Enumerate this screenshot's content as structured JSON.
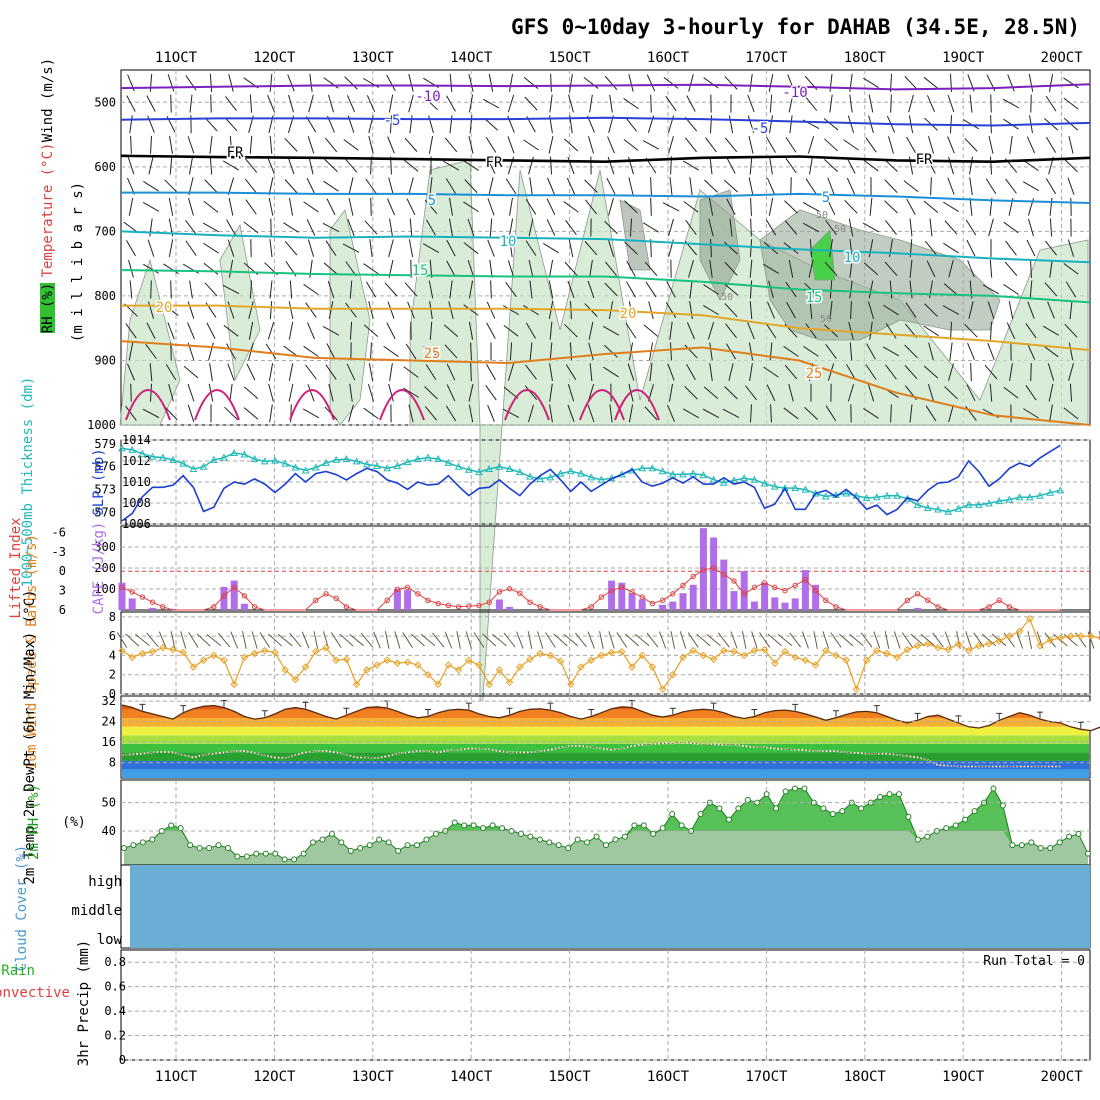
{
  "chart_data": {
    "type": "meteogram",
    "title": "GFS 0~10day 3-hourly for DAHAB (34.5E, 28.5N)",
    "x_ticks": [
      "11OCT",
      "12OCT",
      "13OCT",
      "14OCT",
      "15OCT",
      "16OCT",
      "17OCT",
      "18OCT",
      "19OCT",
      "20OCT"
    ],
    "panels": [
      {
        "id": "upper_air",
        "ylabel_parts": [
          "RH (%)",
          "Temperature (°C)",
          "Wind (m/s)"
        ],
        "ylabel_sub": "(m i l l i b a r s)",
        "y_ticks": [
          "500",
          "600",
          "700",
          "800",
          "900",
          "1000"
        ],
        "ylim": [
          1000,
          450
        ],
        "contour_labels": {
          "minus10": "-10",
          "minus5": "-5",
          "freezing": "FR",
          "plus5": "5",
          "plus10": "10",
          "plus15": "15",
          "plus20": "20",
          "plus25": "25",
          "rh50": "50"
        },
        "isotherms": [
          {
            "name": "-10",
            "color": "#7b1fbf",
            "levels": [
              478,
              476,
              474,
              474,
              475,
              474,
              473,
              476,
              480,
              478,
              472
            ]
          },
          {
            "name": "-5",
            "color": "#2a3fd6",
            "levels": [
              527,
              525,
              525,
              526,
              526,
              524,
              526,
              530,
              534,
              536,
              532
            ]
          },
          {
            "name": "FR",
            "color": "#000000",
            "levels": [
              583,
              585,
              586,
              588,
              590,
              592,
              586,
              584,
              590,
              592,
              586
            ]
          },
          {
            "name": "5",
            "color": "#1b8fd8",
            "levels": [
              640,
              640,
              642,
              642,
              644,
              644,
              646,
              642,
              646,
              652,
              656
            ]
          },
          {
            "name": "10",
            "color": "#18b2bf",
            "levels": [
              700,
              706,
              710,
              708,
              710,
              712,
              720,
              728,
              734,
              742,
              748
            ]
          },
          {
            "name": "15",
            "color": "#19c27e",
            "levels": [
              760,
              762,
              766,
              768,
              770,
              770,
              778,
              790,
              796,
              800,
              810
            ]
          },
          {
            "name": "20",
            "color": "#e2a628",
            "levels": [
              815,
              815,
              820,
              820,
              820,
              822,
              830,
              850,
              860,
              870,
              884
            ]
          },
          {
            "name": "25",
            "color": "#e07e1c",
            "levels": [
              870,
              880,
              896,
              900,
              904,
              890,
              880,
              900,
              950,
              985,
              1000
            ]
          }
        ]
      },
      {
        "id": "slp_thickness",
        "ylabel_left": "1000~500mb Thickness (dm)",
        "ylabel_right": "SLP (mb)",
        "thickness_ticks": [
          "579",
          "576",
          "573",
          "570"
        ],
        "slp_ticks": [
          "1014",
          "1012",
          "1010",
          "1008",
          "1006"
        ],
        "slp_mb": [
          1006.3,
          1007.0,
          1008.6,
          1009.5,
          1009.5,
          1009.7,
          1010.6,
          1009.5,
          1007.2,
          1007.6,
          1009.4,
          1010.0,
          1009.8,
          1010.3,
          1009.8,
          1009.0,
          1009.8,
          1010.8,
          1010.0,
          1010.8,
          1011.0,
          1010.7,
          1010.2,
          1010.8,
          1011.3,
          1011.0,
          1010.2,
          1009.9,
          1009.3,
          1010.0,
          1009.7,
          1009.8,
          1010.6,
          1009.6,
          1008.7,
          1009.4,
          1009.5,
          1010.2,
          1009.4,
          1008.7,
          1009.8,
          1010.6,
          1011.2,
          1010.2,
          1009.1,
          1010.0,
          1009.1,
          1009.7,
          1010.3,
          1010.7,
          1011.2,
          1010.0,
          1009.6,
          1009.9,
          1010.4,
          1009.9,
          1010.5,
          1009.8,
          1009.8,
          1010.4,
          1009.8,
          1010.0,
          1009.5,
          1007.5,
          1007.9,
          1009.4,
          1007.4,
          1007.4,
          1008.9,
          1009.2,
          1008.6,
          1009.3,
          1008.5,
          1007.4,
          1007.8,
          1006.9,
          1007.4,
          1008.5,
          1008.2,
          1009.2,
          1009.9,
          1010.0,
          1010.5,
          1012.0,
          1011.0,
          1009.6,
          1010.3,
          1011.3,
          1011.8,
          1011.5,
          1012.3,
          1012.9,
          1013.5
        ],
        "thickness_dm": [
          578.4,
          578.2,
          577.7,
          577.3,
          577.2,
          576.9,
          576.4,
          575.7,
          576.0,
          576.9,
          577.2,
          577.8,
          577.6,
          577.0,
          576.7,
          576.8,
          576.4,
          575.9,
          575.5,
          575.9,
          576.5,
          576.9,
          577.0,
          576.7,
          576.3,
          576.1,
          575.8,
          576.1,
          576.6,
          577.0,
          577.2,
          577.0,
          576.5,
          576.0,
          575.6,
          575.3,
          575.7,
          576.0,
          575.7,
          575.3,
          574.7,
          574.4,
          574.6,
          575.1,
          575.4,
          575.1,
          574.6,
          574.3,
          574.5,
          575.0,
          575.5,
          575.8,
          575.8,
          575.4,
          575.0,
          575.0,
          575.1,
          574.9,
          574.3,
          573.9,
          574.2,
          574.5,
          574.3,
          573.8,
          573.4,
          573.2,
          573.2,
          573.0,
          572.5,
          572.1,
          572.3,
          572.5,
          572.2,
          571.9,
          572.0,
          572.2,
          572.2,
          571.8,
          571.0,
          570.6,
          570.4,
          570.1,
          570.5,
          571.0,
          571.0,
          571.2,
          571.5,
          571.7,
          572.0,
          572.0,
          572.2,
          572.6,
          572.9
        ]
      },
      {
        "id": "cape_li",
        "ylabel_left": "Lifted Index",
        "ylabel_right": "CAPE (J/kg)",
        "li_ticks": [
          "-6",
          "-3",
          "0",
          "3",
          "6"
        ],
        "cape_ticks": [
          "300",
          "200",
          "100"
        ],
        "cape_jkg": [
          130,
          55,
          0,
          10,
          0,
          5,
          0,
          0,
          0,
          0,
          110,
          140,
          30,
          0,
          0,
          0,
          0,
          0,
          0,
          0,
          0,
          0,
          0,
          0,
          0,
          0,
          0,
          100,
          95,
          0,
          0,
          0,
          0,
          0,
          0,
          0,
          0,
          50,
          15,
          0,
          0,
          0,
          0,
          0,
          0,
          0,
          0,
          0,
          140,
          130,
          80,
          50,
          0,
          25,
          40,
          80,
          120,
          390,
          345,
          240,
          90,
          185,
          40,
          130,
          60,
          35,
          55,
          190,
          120,
          0,
          0,
          0,
          0,
          0,
          0,
          0,
          0,
          0,
          10,
          0,
          0,
          0,
          0,
          0,
          0,
          0,
          0,
          0,
          0,
          0,
          0,
          0,
          0
        ],
        "lifted_index": [
          2.5,
          3.2,
          4.0,
          4.8,
          5.5,
          6.0,
          6.0,
          6.0,
          6.0,
          5.5,
          3.8,
          2.5,
          3.8,
          5.5,
          6.0,
          6.0,
          6.0,
          6.0,
          6.0,
          4.5,
          3.5,
          4.2,
          5.5,
          6.0,
          6.0,
          6.0,
          4.5,
          2.8,
          2.5,
          3.5,
          4.5,
          5.0,
          5.3,
          5.5,
          5.4,
          5.3,
          4.8,
          3.2,
          2.7,
          3.4,
          4.8,
          5.5,
          6.0,
          6.0,
          6.0,
          6.0,
          5.5,
          4.0,
          3.0,
          2.5,
          3.2,
          4.0,
          5.0,
          4.5,
          3.5,
          2.2,
          0.8,
          -0.2,
          -0.5,
          0.5,
          1.5,
          3.5,
          2.5,
          1.8,
          2.5,
          3.0,
          2.2,
          1.3,
          3.0,
          4.5,
          5.5,
          6.0,
          6.0,
          6.0,
          6.0,
          6.0,
          6.0,
          4.5,
          3.5,
          4.5,
          5.5,
          6.0,
          6.0,
          6.0,
          6.0,
          5.5,
          4.5,
          5.5,
          6.0,
          6.0,
          6.0,
          6.0,
          6.0
        ]
      },
      {
        "id": "wind10m",
        "ylabel": "10m Wind Speed & Barbs (m/s)",
        "y_ticks": [
          "8",
          "6",
          "4",
          "2",
          "0"
        ],
        "speed_ms": [
          4.5,
          3.8,
          4.2,
          4.4,
          4.8,
          4.6,
          4.3,
          2.8,
          3.5,
          4.0,
          3.5,
          1.0,
          3.8,
          4.2,
          4.5,
          4.3,
          2.5,
          1.5,
          2.8,
          4.4,
          4.8,
          3.5,
          3.6,
          1.0,
          2.5,
          3.0,
          3.5,
          3.2,
          3.3,
          3.0,
          2.0,
          1.0,
          3.0,
          2.5,
          3.5,
          3.0,
          1.0,
          2.5,
          1.2,
          2.8,
          3.6,
          4.2,
          4.0,
          3.4,
          1.0,
          2.8,
          3.5,
          4.0,
          4.3,
          4.4,
          2.8,
          4.0,
          2.8,
          0.5,
          2.0,
          3.8,
          4.5,
          4.0,
          3.6,
          4.5,
          4.4,
          4.0,
          4.5,
          4.6,
          3.2,
          4.4,
          3.8,
          3.5,
          3.0,
          4.5,
          4.0,
          3.5,
          0.5,
          3.5,
          4.5,
          4.2,
          3.8,
          4.6,
          5.0,
          5.2,
          4.8,
          4.6,
          5.2,
          4.5,
          5.0,
          5.2,
          5.5,
          6.0,
          6.5,
          7.8,
          5.0,
          5.6,
          5.8,
          6.0,
          6.0,
          6.0,
          5.8
        ]
      },
      {
        "id": "temp_dewpt",
        "ylabel": "2m Temp 2m DewPt (6hr Min/Max) (°C)",
        "y_ticks": [
          "32",
          "24",
          "16",
          "8"
        ],
        "temp_c": [
          30.5,
          29.5,
          28.0,
          27.0,
          26.0,
          25.0,
          27.5,
          29.0,
          30.0,
          30.3,
          29.5,
          28.0,
          26.0,
          25.0,
          25.5,
          27.0,
          28.8,
          29.5,
          28.8,
          27.5,
          26.0,
          25.0,
          26.5,
          28.0,
          29.5,
          29.8,
          29.3,
          28.0,
          26.5,
          25.5,
          26.0,
          27.5,
          28.5,
          28.8,
          28.5,
          27.0,
          26.0,
          25.5,
          26.5,
          28.0,
          28.8,
          29.0,
          28.5,
          27.5,
          26.0,
          25.0,
          26.0,
          27.5,
          29.0,
          29.8,
          29.5,
          28.0,
          26.5,
          25.8,
          26.5,
          27.8,
          28.5,
          28.8,
          28.5,
          27.5,
          26.0,
          25.2,
          26.0,
          27.5,
          28.3,
          28.5,
          28.0,
          27.0,
          25.8,
          24.5,
          25.5,
          26.8,
          27.8,
          28.0,
          27.5,
          26.0,
          24.5,
          23.5,
          24.5,
          26.0,
          26.5,
          25.0,
          23.5,
          22.0,
          21.5,
          22.5,
          24.5,
          26.0,
          27.5,
          26.5,
          25.0,
          24.0,
          23.5,
          22.0,
          21.0,
          20.5,
          22.0
        ],
        "dewpt_c": [
          11.0,
          11.2,
          11.5,
          12.0,
          12.2,
          12.0,
          11.0,
          10.0,
          11.0,
          11.5,
          12.0,
          12.5,
          12.5,
          11.8,
          10.8,
          10.0,
          9.8,
          11.0,
          12.0,
          12.5,
          12.5,
          12.0,
          11.0,
          10.0,
          10.0,
          9.8,
          10.5,
          11.5,
          12.0,
          12.5,
          12.5,
          12.0,
          12.8,
          13.0,
          13.5,
          13.5,
          13.2,
          12.5,
          12.0,
          12.0,
          12.0,
          12.5,
          13.0,
          14.0,
          14.5,
          14.5,
          14.0,
          13.5,
          13.0,
          13.5,
          14.5,
          15.0,
          15.2,
          15.5,
          15.5,
          16.0,
          15.5,
          15.2,
          15.2,
          15.0,
          15.0,
          14.5,
          14.0,
          14.0,
          13.5,
          13.2,
          13.0,
          12.8,
          12.5,
          12.5,
          12.5,
          12.0,
          11.8,
          11.5,
          11.5,
          11.5,
          11.0,
          10.5,
          10.0,
          9.0,
          7.0,
          6.8,
          6.5,
          6.5,
          6.5,
          6.5,
          6.5,
          6.5,
          6.5,
          6.5,
          6.5,
          6.5,
          6.5
        ],
        "color_bands": [
          "#3ea0e8",
          "#3070d8",
          "#2aa030",
          "#3cc040",
          "#a8e040",
          "#f0f040",
          "#f8b030",
          "#f08020",
          "#e05a10"
        ]
      },
      {
        "id": "rh2m",
        "ylabel": "2m RH (%)",
        "y_ticks": [
          "50",
          "40"
        ],
        "rh_pct": [
          34,
          35,
          36,
          37,
          40,
          42,
          41,
          35,
          34,
          34,
          35,
          34,
          31,
          31,
          32,
          32,
          32,
          30,
          30,
          32,
          36,
          37,
          39,
          36,
          33,
          34,
          35,
          37,
          36,
          33,
          35,
          35,
          37,
          39,
          40,
          43,
          42,
          42,
          41,
          42,
          41,
          40,
          39,
          38,
          37,
          36,
          35,
          34,
          37,
          36,
          38,
          35,
          37,
          38,
          42,
          42,
          39,
          41,
          46,
          42,
          40,
          46,
          50,
          48,
          44,
          48,
          51,
          50,
          53,
          48,
          54,
          55,
          55,
          50,
          48,
          46,
          47,
          50,
          48,
          50,
          52,
          53,
          53,
          45,
          37,
          38,
          40,
          41,
          42,
          44,
          47,
          50,
          55,
          49,
          35,
          35,
          36,
          34,
          34,
          36,
          38,
          39,
          32
        ],
        "fill_color": "#58c058",
        "lower_fill_color": "#a0c8a0"
      },
      {
        "id": "cloud",
        "ylabel": "Cloud Cover (%)",
        "levels": [
          "high",
          "middle",
          "low"
        ],
        "fill_color": "#6aaed6"
      },
      {
        "id": "precip",
        "ylabel_left_1": "Total / Rain",
        "ylabel_left_2": "Convective",
        "ylabel": "3hr Precip (mm)",
        "y_ticks": [
          "0.8",
          "0.6",
          "0.4",
          "0.2",
          "0"
        ],
        "run_total": "Run Total = 0",
        "precip_mm": []
      }
    ]
  }
}
